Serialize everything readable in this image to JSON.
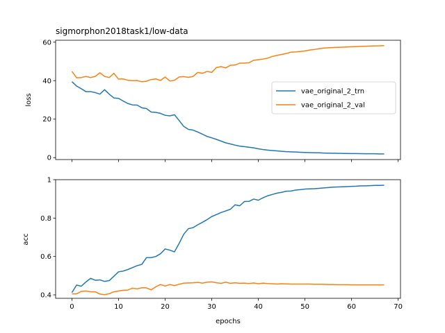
{
  "chart_data": {
    "type": "line",
    "title": "sigmorphon2018task1/low-data",
    "xlabel": "epochs",
    "x": [
      0,
      1,
      2,
      3,
      4,
      5,
      6,
      7,
      8,
      9,
      10,
      11,
      12,
      13,
      14,
      15,
      16,
      17,
      18,
      19,
      20,
      21,
      22,
      23,
      24,
      25,
      26,
      27,
      28,
      29,
      30,
      31,
      32,
      33,
      34,
      35,
      36,
      37,
      38,
      39,
      40,
      41,
      42,
      43,
      44,
      45,
      46,
      47,
      48,
      49,
      50,
      51,
      52,
      53,
      54,
      55,
      56,
      57,
      58,
      59,
      60,
      61,
      62,
      63,
      64,
      65,
      66,
      67
    ],
    "xlim": [
      -3.5,
      70.5
    ],
    "xticks": [
      0,
      10,
      20,
      30,
      40,
      50,
      60,
      70
    ],
    "panels": [
      {
        "ylabel": "loss",
        "ylim": [
          -1,
          61
        ],
        "yticks": [
          0,
          20,
          40,
          60
        ],
        "legend": "center-right",
        "series": [
          {
            "name": "vae_original_2_trn",
            "color": "#1f77b4",
            "values": [
              39.5,
              37.2,
              35.8,
              34.3,
              34.3,
              33.8,
              33.0,
              35.3,
              33.0,
              31.0,
              30.8,
              29.4,
              28.1,
              27.4,
              27.3,
              25.9,
              25.5,
              23.7,
              23.5,
              23.0,
              22.0,
              21.7,
              22.3,
              19.3,
              16.2,
              14.7,
              14.3,
              13.3,
              12.2,
              11.0,
              10.3,
              9.5,
              8.6,
              7.7,
              7.1,
              6.5,
              6.0,
              5.7,
              5.4,
              5.1,
              4.6,
              4.2,
              3.9,
              3.7,
              3.5,
              3.3,
              3.1,
              3.0,
              2.9,
              2.8,
              2.7,
              2.6,
              2.55,
              2.5,
              2.4,
              2.35,
              2.3,
              2.25,
              2.2,
              2.15,
              2.1,
              2.1,
              2.05,
              2.0,
              2.0,
              2.0,
              1.95,
              1.95
            ]
          },
          {
            "name": "vae_original_2_val",
            "color": "#ff7f0e",
            "values": [
              44.8,
              41.5,
              41.6,
              42.2,
              41.6,
              42.2,
              44.1,
              42.2,
              41.6,
              43.8,
              40.8,
              40.9,
              40.2,
              40.0,
              40.1,
              39.4,
              39.7,
              40.6,
              40.9,
              40.1,
              41.9,
              39.8,
              40.2,
              41.9,
              42.1,
              41.7,
              42.2,
              44.3,
              43.8,
              44.8,
              44.3,
              46.8,
              47.3,
              46.6,
              48.0,
              48.1,
              49.1,
              49.1,
              49.3,
              50.6,
              50.9,
              51.2,
              51.7,
              52.6,
              53.1,
              53.6,
              54.1,
              54.8,
              54.9,
              55.2,
              55.4,
              55.9,
              56.2,
              56.6,
              56.9,
              57.1,
              57.2,
              57.3,
              57.4,
              57.5,
              57.6,
              57.7,
              57.8,
              57.9,
              58.0,
              58.05,
              58.1,
              58.2
            ]
          }
        ]
      },
      {
        "ylabel": "acc",
        "ylim": [
          0.382,
          1.0
        ],
        "yticks": [
          0.4,
          0.6,
          0.8,
          1.0
        ],
        "legend": "none",
        "series": [
          {
            "name": "vae_original_2_trn",
            "color": "#1f77b4",
            "values": [
              0.412,
              0.451,
              0.445,
              0.467,
              0.486,
              0.476,
              0.478,
              0.47,
              0.474,
              0.497,
              0.52,
              0.524,
              0.532,
              0.542,
              0.552,
              0.559,
              0.594,
              0.594,
              0.6,
              0.614,
              0.639,
              0.633,
              0.624,
              0.668,
              0.716,
              0.745,
              0.75,
              0.765,
              0.778,
              0.792,
              0.808,
              0.818,
              0.829,
              0.837,
              0.846,
              0.869,
              0.864,
              0.886,
              0.887,
              0.899,
              0.893,
              0.906,
              0.916,
              0.923,
              0.93,
              0.934,
              0.94,
              0.941,
              0.946,
              0.948,
              0.951,
              0.952,
              0.953,
              0.955,
              0.957,
              0.959,
              0.961,
              0.962,
              0.963,
              0.964,
              0.965,
              0.966,
              0.968,
              0.968,
              0.969,
              0.97,
              0.97,
              0.971
            ]
          },
          {
            "name": "vae_original_2_val",
            "color": "#ff7f0e",
            "values": [
              0.405,
              0.405,
              0.418,
              0.42,
              0.416,
              0.416,
              0.404,
              0.401,
              0.406,
              0.416,
              0.42,
              0.424,
              0.425,
              0.435,
              0.431,
              0.437,
              0.436,
              0.426,
              0.442,
              0.454,
              0.446,
              0.454,
              0.448,
              0.455,
              0.461,
              0.462,
              0.463,
              0.465,
              0.461,
              0.466,
              0.468,
              0.463,
              0.46,
              0.466,
              0.46,
              0.463,
              0.46,
              0.461,
              0.459,
              0.462,
              0.458,
              0.461,
              0.459,
              0.458,
              0.456,
              0.458,
              0.457,
              0.456,
              0.456,
              0.456,
              0.456,
              0.456,
              0.455,
              0.455,
              0.455,
              0.454,
              0.454,
              0.453,
              0.453,
              0.453,
              0.452,
              0.452,
              0.452,
              0.452,
              0.452,
              0.452,
              0.452,
              0.452
            ]
          }
        ]
      }
    ]
  }
}
